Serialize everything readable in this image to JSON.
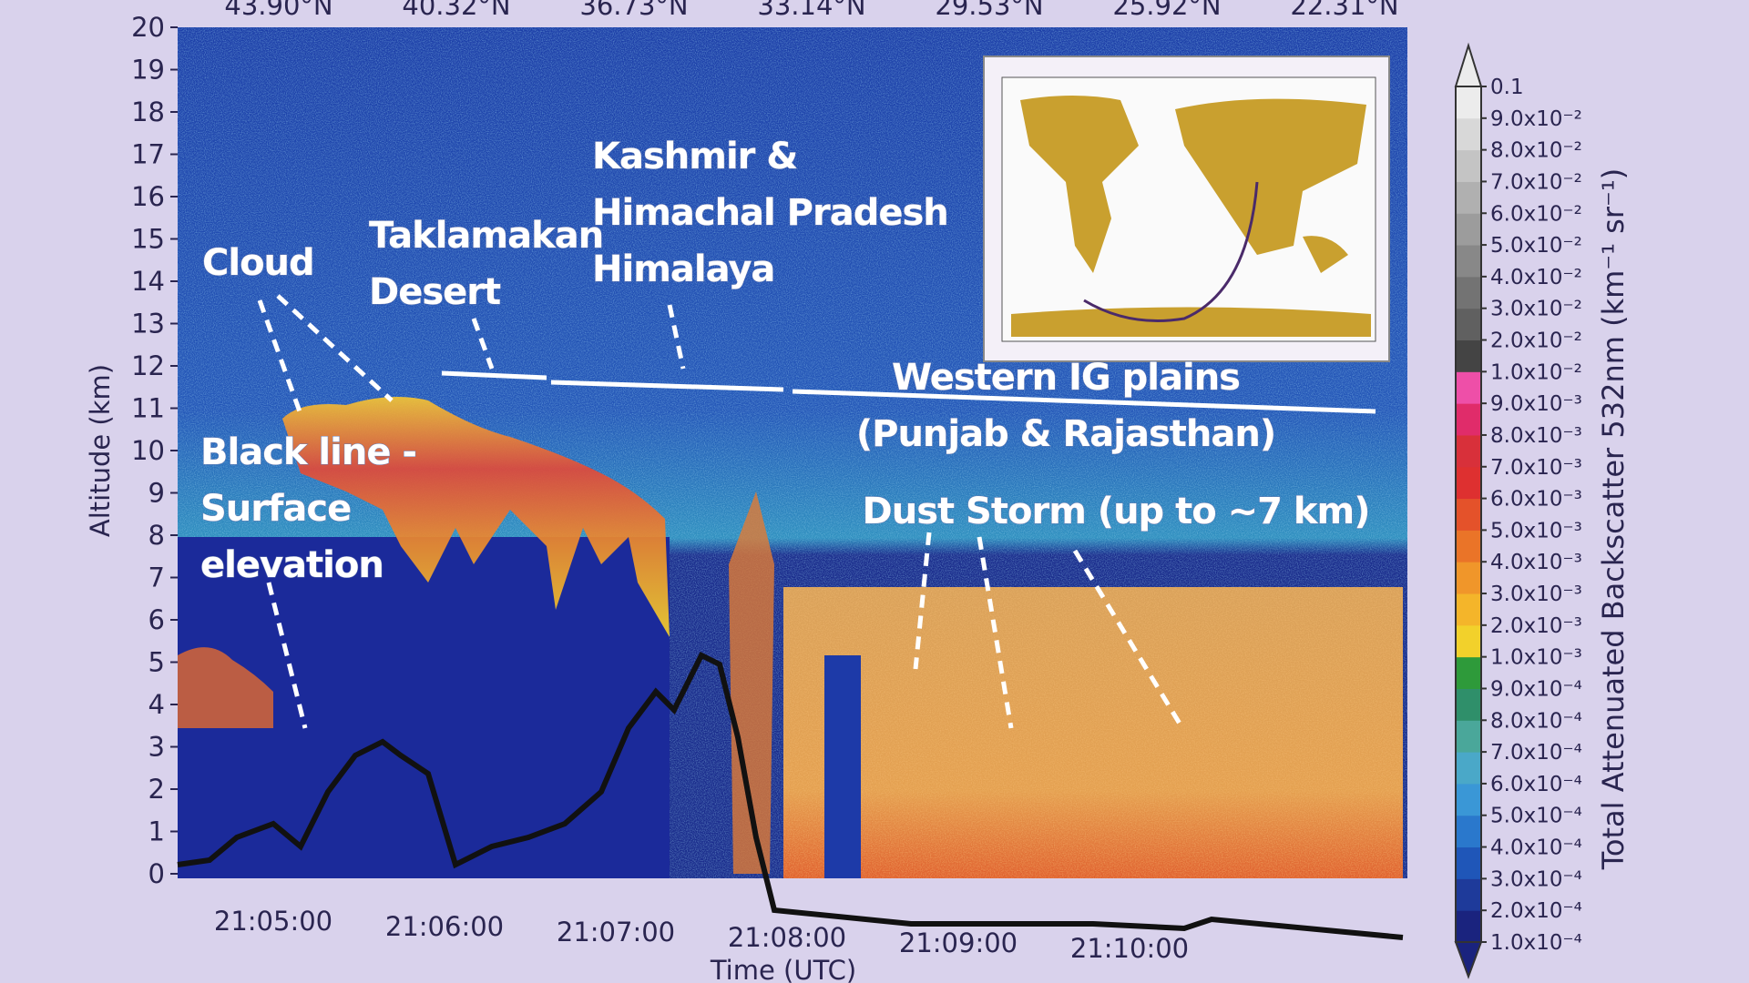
{
  "chart_data": {
    "type": "heatmap",
    "y_label": "Altitude (km)",
    "x_label": "Time (UTC)",
    "ylim": [
      0,
      20
    ],
    "yticks": [
      0,
      1,
      2,
      3,
      4,
      5,
      6,
      7,
      8,
      9,
      10,
      11,
      12,
      13,
      14,
      15,
      16,
      17,
      18,
      19,
      20
    ],
    "x_tick_labels": [
      "21:05:00",
      "21:06:00",
      "21:07:00",
      "21:08:00",
      "21:09:00",
      "21:10:00"
    ],
    "top_tick_labels": [
      "43.90°N",
      "40.32°N",
      "36.73°N",
      "33.14°N",
      "29.53°N",
      "25.92°N",
      "22.31°N"
    ],
    "annotations": [
      {
        "lines": [
          "Cloud"
        ]
      },
      {
        "lines": [
          "Taklamakan",
          "Desert"
        ]
      },
      {
        "lines": [
          "Kashmir &",
          "Himachal Pradesh",
          "Himalaya"
        ]
      },
      {
        "lines": [
          "Western IG plains",
          "(Punjab & Rajasthan)"
        ]
      },
      {
        "lines": [
          "Dust Storm (up to ~7 km)"
        ]
      },
      {
        "lines": [
          "Black line -",
          "Surface",
          "elevation"
        ]
      }
    ],
    "colorbar": {
      "label": "Total Attenuated Backscatter 532nm (km⁻¹ sr⁻¹)",
      "ticks": [
        {
          "value": 0.0001,
          "label": "1.0x10⁻⁴"
        },
        {
          "value": 0.0002,
          "label": "2.0x10⁻⁴"
        },
        {
          "value": 0.0003,
          "label": "3.0x10⁻⁴"
        },
        {
          "value": 0.0004,
          "label": "4.0x10⁻⁴"
        },
        {
          "value": 0.0005,
          "label": "5.0x10⁻⁴"
        },
        {
          "value": 0.0006,
          "label": "6.0x10⁻⁴"
        },
        {
          "value": 0.0007,
          "label": "7.0x10⁻⁴"
        },
        {
          "value": 0.0008,
          "label": "8.0x10⁻⁴"
        },
        {
          "value": 0.0009,
          "label": "9.0x10⁻⁴"
        },
        {
          "value": 0.001,
          "label": "1.0x10⁻³"
        },
        {
          "value": 0.002,
          "label": "2.0x10⁻³"
        },
        {
          "value": 0.003,
          "label": "3.0x10⁻³"
        },
        {
          "value": 0.004,
          "label": "4.0x10⁻³"
        },
        {
          "value": 0.005,
          "label": "5.0x10⁻³"
        },
        {
          "value": 0.006,
          "label": "6.0x10⁻³"
        },
        {
          "value": 0.007,
          "label": "7.0x10⁻³"
        },
        {
          "value": 0.008,
          "label": "8.0x10⁻³"
        },
        {
          "value": 0.009,
          "label": "9.0x10⁻³"
        },
        {
          "value": 0.01,
          "label": "1.0x10⁻²"
        },
        {
          "value": 0.02,
          "label": "2.0x10⁻²"
        },
        {
          "value": 0.03,
          "label": "3.0x10⁻²"
        },
        {
          "value": 0.04,
          "label": "4.0x10⁻²"
        },
        {
          "value": 0.05,
          "label": "5.0x10⁻²"
        },
        {
          "value": 0.06,
          "label": "6.0x10⁻²"
        },
        {
          "value": 0.07,
          "label": "7.0x10⁻²"
        },
        {
          "value": 0.08,
          "label": "8.0x10⁻²"
        },
        {
          "value": 0.09,
          "label": "9.0x10⁻²"
        },
        0.1
      ],
      "colors": [
        "#1a237e",
        "#1e3a9a",
        "#1f56b8",
        "#2a78cc",
        "#3a97d6",
        "#4aa8c8",
        "#4aa79a",
        "#2f8f6a",
        "#2e9a3a",
        "#f2d12b",
        "#f4b52a",
        "#f0962a",
        "#ea7428",
        "#e4522a",
        "#de3030",
        "#d8303a",
        "#e02c6a",
        "#ee4fa8",
        "#444444",
        "#606060",
        "#737373",
        "#888888",
        "#9c9c9c",
        "#b0b0b0",
        "#c4c4c4",
        "#d8d8d8",
        "#ececec"
      ]
    }
  }
}
